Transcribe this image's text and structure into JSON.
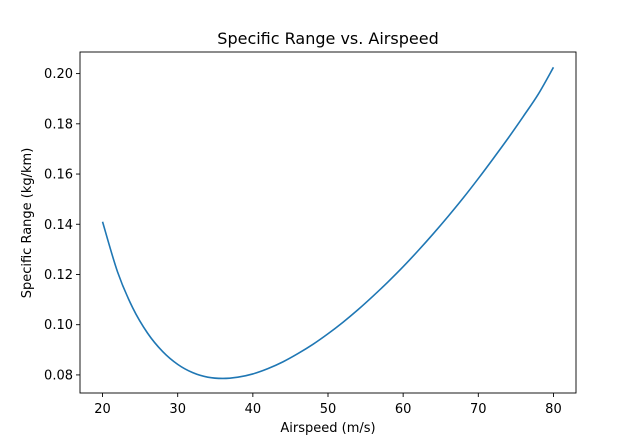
{
  "chart_data": {
    "type": "line",
    "title": "Specific Range vs. Airspeed",
    "xlabel": "Airspeed (m/s)",
    "ylabel": "Specific Range (kg/km)",
    "xlim": [
      17,
      83
    ],
    "ylim": [
      0.0728,
      0.2086
    ],
    "xticks": [
      20,
      30,
      40,
      50,
      60,
      70,
      80
    ],
    "xtick_labels": [
      "20",
      "30",
      "40",
      "50",
      "60",
      "70",
      "80"
    ],
    "yticks": [
      0.08,
      0.1,
      0.12,
      0.14,
      0.16,
      0.18,
      0.2
    ],
    "ytick_labels": [
      "0.08",
      "0.10",
      "0.12",
      "0.14",
      "0.16",
      "0.18",
      "0.20"
    ],
    "grid": false,
    "legend": "none",
    "series": [
      {
        "color": "#1f77b4",
        "x": [
          20,
          22,
          24,
          26,
          28,
          30,
          32,
          34,
          36,
          38,
          40,
          42,
          44,
          46,
          48,
          50,
          52,
          54,
          56,
          58,
          60,
          62,
          64,
          66,
          68,
          70,
          72,
          74,
          76,
          78,
          80
        ],
        "y": [
          0.141,
          0.121,
          0.1068,
          0.0966,
          0.0893,
          0.0842,
          0.0809,
          0.0791,
          0.0786,
          0.0791,
          0.0804,
          0.0825,
          0.0852,
          0.0885,
          0.0922,
          0.0964,
          0.101,
          0.106,
          0.1114,
          0.1171,
          0.1231,
          0.1295,
          0.1362,
          0.1432,
          0.1505,
          0.1582,
          0.1662,
          0.1744,
          0.183,
          0.1919,
          0.2025
        ]
      }
    ]
  }
}
